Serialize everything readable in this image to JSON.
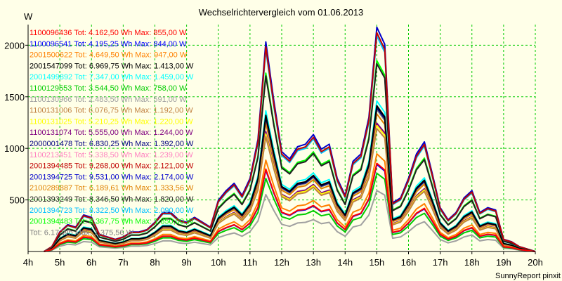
{
  "chart_data": {
    "type": "line",
    "title": "Wechselrichtervergleich vom 01.06.2013",
    "ylabel": "W",
    "xlabel": "",
    "credit": "SunnyReport pinxit",
    "xlim": [
      4,
      20
    ],
    "ylim": [
      0,
      2200
    ],
    "grid": true,
    "legend_position": "top-left",
    "x_ticks": [
      {
        "v": 4,
        "label": "4h"
      },
      {
        "v": 5,
        "label": "5h"
      },
      {
        "v": 6,
        "label": "6h"
      },
      {
        "v": 7,
        "label": "7h"
      },
      {
        "v": 8,
        "label": "8h"
      },
      {
        "v": 9,
        "label": "9h"
      },
      {
        "v": 10,
        "label": "10h"
      },
      {
        "v": 11,
        "label": "11h"
      },
      {
        "v": 12,
        "label": "12h"
      },
      {
        "v": 13,
        "label": "13h"
      },
      {
        "v": 14,
        "label": "14h"
      },
      {
        "v": 15,
        "label": "15h"
      },
      {
        "v": 16,
        "label": "16h"
      },
      {
        "v": 17,
        "label": "17h"
      },
      {
        "v": 18,
        "label": "18h"
      },
      {
        "v": 19,
        "label": "19h"
      },
      {
        "v": 20,
        "label": "20h"
      }
    ],
    "y_ticks": [
      {
        "v": 500,
        "label": "500"
      },
      {
        "v": 1000,
        "label": "1000"
      },
      {
        "v": 1500,
        "label": "1500"
      },
      {
        "v": 2000,
        "label": "2000"
      }
    ],
    "x": [
      4.5,
      4.75,
      5.0,
      5.25,
      5.5,
      5.75,
      6.0,
      6.25,
      6.5,
      6.75,
      7.0,
      7.25,
      7.5,
      7.75,
      8.0,
      8.25,
      8.5,
      8.75,
      9.0,
      9.25,
      9.5,
      9.75,
      10.0,
      10.25,
      10.5,
      10.75,
      11.0,
      11.25,
      11.5,
      11.75,
      12.0,
      12.25,
      12.5,
      12.75,
      13.0,
      13.25,
      13.5,
      13.75,
      14.0,
      14.25,
      14.5,
      14.75,
      15.0,
      15.25,
      15.5,
      15.75,
      16.0,
      16.25,
      16.5,
      16.75,
      17.0,
      17.25,
      17.5,
      17.75,
      18.0,
      18.25,
      18.5,
      18.75,
      19.0,
      19.25,
      19.5,
      19.75,
      20.0
    ],
    "base_shape": [
      0,
      0.02,
      0.08,
      0.11,
      0.1,
      0.15,
      0.14,
      0.07,
      0.06,
      0.05,
      0.06,
      0.08,
      0.08,
      0.09,
      0.12,
      0.16,
      0.16,
      0.13,
      0.12,
      0.14,
      0.12,
      0.1,
      0.21,
      0.25,
      0.28,
      0.23,
      0.3,
      0.46,
      0.86,
      0.62,
      0.41,
      0.38,
      0.43,
      0.44,
      0.48,
      0.42,
      0.44,
      0.3,
      0.23,
      0.37,
      0.4,
      0.55,
      0.92,
      0.85,
      0.2,
      0.22,
      0.3,
      0.4,
      0.45,
      0.32,
      0.18,
      0.13,
      0.16,
      0.22,
      0.25,
      0.16,
      0.18,
      0.17,
      0.05,
      0.04,
      0.02,
      0.01,
      0.0
    ],
    "legend_overflow_text": "2001",
    "series": [
      {
        "name": "1100096436 Tot: 4.162,50 Wh Max: 855,00 W",
        "color": "#ff0000",
        "peak": 855
      },
      {
        "name": "1100096541 Tot: 4.195,25 Wh Max: 844,00 W",
        "color": "#0000ff",
        "peak": 844
      },
      {
        "name": "2001500622 Tot: 4.649,50 Wh Max: 947,00 W",
        "color": "#ff8000",
        "peak": 947
      },
      {
        "name": "2001547099 Tot: 6.969,75 Wh Max: 1.413,00 W",
        "color": "#000000",
        "peak": 1413
      },
      {
        "name": "2001499892 Tot: 7.347,00 Wh Max: 1.459,00 W",
        "color": "#00ffff",
        "peak": 1459
      },
      {
        "name": "1100129553 Tot: 3.544,50 Wh Max: 758,00 W",
        "color": "#00cc00",
        "peak": 758
      },
      {
        "name": "1100130966 Tot: 2.483,50 Wh Max: 591,00 W",
        "color": "#a0a0a0",
        "peak": 591
      },
      {
        "name": "1100131006 Tot: 6.076,75 Wh Max: 1.192,00 W",
        "color": "#c08040",
        "peak": 1192
      },
      {
        "name": "1100131025 Tot: 5.210,25 Wh Max: 1.220,00 W",
        "color": "#ffff00",
        "peak": 1220
      },
      {
        "name": "1100131074 Tot: 5.555,00 Wh Max: 1.244,00 W",
        "color": "#800080",
        "peak": 1244
      },
      {
        "name": "2000001478 Tot: 6.830,25 Wh Max: 1.392,00 W",
        "color": "#000080",
        "peak": 1392
      },
      {
        "name": "1100213451 Tot: 5.338,50 Wh Max: 1.239,00 W",
        "color": "#ff80c0",
        "peak": 1239
      },
      {
        "name": "2001394485 Tot: 9.268,00 Wh Max: 2.121,00 W",
        "color": "#c00000",
        "peak": 2121
      },
      {
        "name": "2001394725 Tot: 9.531,00 Wh Max: 2.174,00 W",
        "color": "#0000cc",
        "peak": 2174
      },
      {
        "name": "2100289887 Tot: 6.189,61 Wh Max: 1.333,56 W",
        "color": "#e08000",
        "peak": 1333.56
      },
      {
        "name": "2001393249 Tot: 8.346,50 Wh Max: 1.820,00 W",
        "color": "#202020",
        "peak": 1820
      },
      {
        "name": "2001394723 Tot: 8.322,50 Wh Max: 2.090,00 W",
        "color": "#00c0ff",
        "peak": 2090
      },
      {
        "name": "2001394483 Tot: 8.367,75 Wh Max: 1.850,00 W",
        "color": "#00ff00",
        "peak": 1850
      },
      {
        "name": "Tot: 6.17 Wh Max: 1.375,56 W",
        "color": "#808080",
        "peak": 1375.56
      }
    ]
  }
}
